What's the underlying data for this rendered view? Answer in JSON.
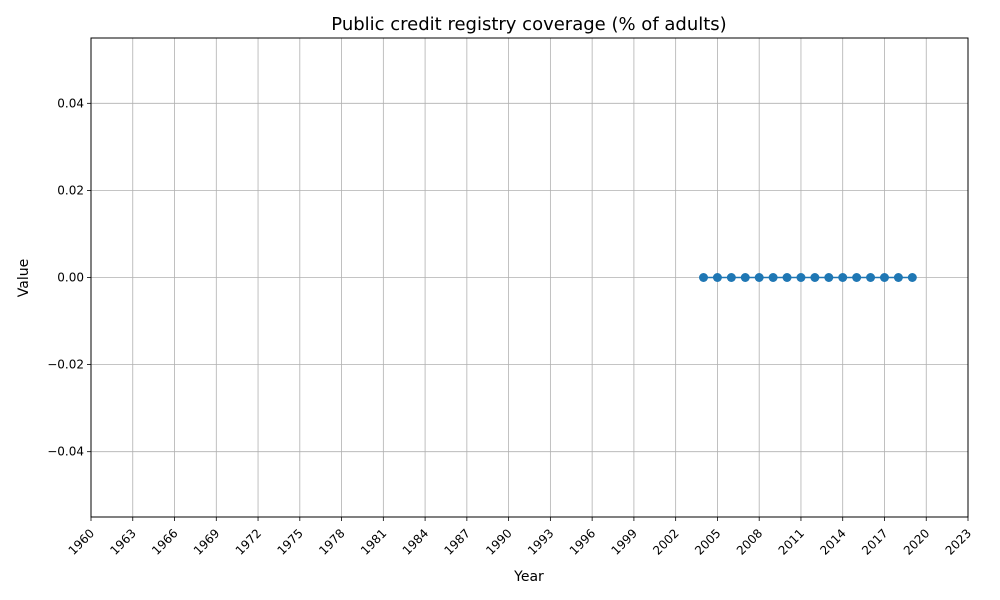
{
  "chart_data": {
    "type": "line",
    "title": "Public credit registry coverage (% of adults)",
    "xlabel": "Year",
    "ylabel": "Value",
    "xlim": [
      1960,
      2023
    ],
    "ylim": [
      -0.055,
      0.055
    ],
    "xticks": [
      "1960",
      "1963",
      "1966",
      "1969",
      "1972",
      "1975",
      "1978",
      "1981",
      "1984",
      "1987",
      "1990",
      "1993",
      "1996",
      "1999",
      "2002",
      "2005",
      "2008",
      "2011",
      "2014",
      "2017",
      "2020",
      "2023"
    ],
    "yticks": [
      "0.04",
      "0.02",
      "0.00",
      "−0.02",
      "−0.04"
    ],
    "grid": true,
    "series": [
      {
        "color": "#1f77b4",
        "marker": "circle",
        "x": [
          2004,
          2005,
          2006,
          2007,
          2008,
          2009,
          2010,
          2011,
          2012,
          2013,
          2014,
          2015,
          2016,
          2017,
          2018,
          2019
        ],
        "y": [
          0,
          0,
          0,
          0,
          0,
          0,
          0,
          0,
          0,
          0,
          0,
          0,
          0,
          0,
          0,
          0
        ]
      }
    ]
  }
}
